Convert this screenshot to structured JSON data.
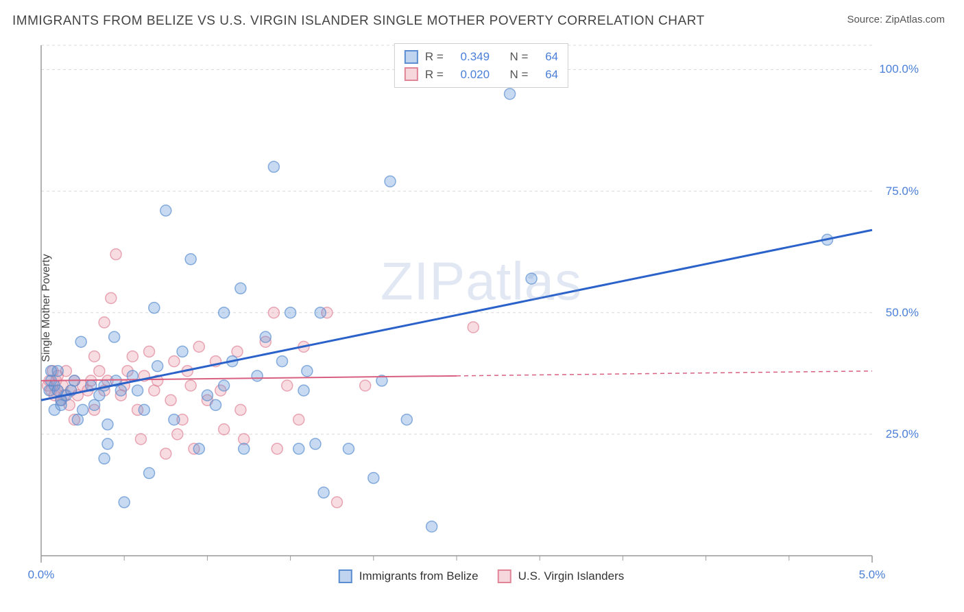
{
  "title": "IMMIGRANTS FROM BELIZE VS U.S. VIRGIN ISLANDER SINGLE MOTHER POVERTY CORRELATION CHART",
  "source": "Source: ZipAtlas.com",
  "watermark": "ZIPatlas",
  "ylabel": "Single Mother Poverty",
  "chart": {
    "type": "scatter",
    "background_color": "#ffffff",
    "grid_color": "#d8d8d8",
    "axis_color": "#999999",
    "xlim": [
      0.0,
      5.0
    ],
    "ylim": [
      0.0,
      105.0
    ],
    "x_ticks": [
      0.0,
      5.0
    ],
    "x_tick_labels": [
      "0.0%",
      "5.0%"
    ],
    "y_gridlines": [
      25.0,
      50.0,
      75.0,
      100.0
    ],
    "y_tick_labels": [
      "25.0%",
      "50.0%",
      "75.0%",
      "100.0%"
    ],
    "x_minor_ticks": [
      0.5,
      1.0,
      1.5,
      2.0,
      2.5,
      3.0,
      3.5,
      4.0,
      4.5
    ],
    "marker_radius": 8,
    "marker_fill_opacity": 0.35,
    "marker_stroke_width": 1.5,
    "series": [
      {
        "name": "Immigrants from Belize",
        "color": "#6194d8",
        "stroke": "#5a8ed0",
        "r_value": "0.349",
        "n_value": "64",
        "regression": {
          "x1": 0.0,
          "y1": 32.0,
          "x2": 5.0,
          "y2": 67.0,
          "width": 3
        },
        "points": [
          [
            0.06,
            36
          ],
          [
            0.05,
            34
          ],
          [
            0.08,
            35
          ],
          [
            0.1,
            34
          ],
          [
            0.12,
            32
          ],
          [
            0.06,
            38
          ],
          [
            0.08,
            30
          ],
          [
            0.1,
            38
          ],
          [
            0.12,
            31
          ],
          [
            0.15,
            33
          ],
          [
            0.18,
            34
          ],
          [
            0.2,
            36
          ],
          [
            0.22,
            28
          ],
          [
            0.25,
            30
          ],
          [
            0.24,
            44
          ],
          [
            0.3,
            35
          ],
          [
            0.32,
            31
          ],
          [
            0.35,
            33
          ],
          [
            0.38,
            35
          ],
          [
            0.4,
            27
          ],
          [
            0.45,
            36
          ],
          [
            0.44,
            45
          ],
          [
            0.48,
            34
          ],
          [
            0.38,
            20
          ],
          [
            0.4,
            23
          ],
          [
            0.55,
            37
          ],
          [
            0.58,
            34
          ],
          [
            0.62,
            30
          ],
          [
            0.5,
            11
          ],
          [
            0.65,
            17
          ],
          [
            0.7,
            39
          ],
          [
            0.85,
            42
          ],
          [
            0.8,
            28
          ],
          [
            0.9,
            61
          ],
          [
            0.68,
            51
          ],
          [
            0.75,
            71
          ],
          [
            1.0,
            33
          ],
          [
            0.95,
            22
          ],
          [
            1.1,
            35
          ],
          [
            1.15,
            40
          ],
          [
            1.1,
            50
          ],
          [
            1.05,
            31
          ],
          [
            1.2,
            55
          ],
          [
            1.3,
            37
          ],
          [
            1.35,
            45
          ],
          [
            1.22,
            22
          ],
          [
            1.4,
            80
          ],
          [
            1.45,
            40
          ],
          [
            1.5,
            50
          ],
          [
            1.6,
            38
          ],
          [
            1.55,
            22
          ],
          [
            1.68,
            50
          ],
          [
            1.7,
            13
          ],
          [
            1.65,
            23
          ],
          [
            1.58,
            34
          ],
          [
            1.85,
            22
          ],
          [
            2.0,
            16
          ],
          [
            2.05,
            36
          ],
          [
            2.1,
            77
          ],
          [
            2.2,
            28
          ],
          [
            2.35,
            6
          ],
          [
            2.82,
            95
          ],
          [
            2.95,
            57
          ],
          [
            4.73,
            65
          ]
        ]
      },
      {
        "name": "U.S. Virgin Islanders",
        "color": "#e89aa8",
        "stroke": "#e08598",
        "r_value": "0.020",
        "n_value": "64",
        "regression_solid": {
          "x1": 0.0,
          "y1": 36.0,
          "x2": 2.5,
          "y2": 37.0,
          "width": 2
        },
        "regression_dashed": {
          "x1": 2.5,
          "y1": 37.0,
          "x2": 5.0,
          "y2": 38.0,
          "width": 1.5
        },
        "points": [
          [
            0.04,
            35
          ],
          [
            0.06,
            34
          ],
          [
            0.05,
            36
          ],
          [
            0.08,
            33
          ],
          [
            0.07,
            38
          ],
          [
            0.1,
            34
          ],
          [
            0.09,
            36
          ],
          [
            0.12,
            32
          ],
          [
            0.1,
            37
          ],
          [
            0.14,
            33
          ],
          [
            0.13,
            35
          ],
          [
            0.15,
            38
          ],
          [
            0.18,
            34
          ],
          [
            0.17,
            31
          ],
          [
            0.2,
            36
          ],
          [
            0.22,
            33
          ],
          [
            0.25,
            35
          ],
          [
            0.2,
            28
          ],
          [
            0.28,
            34
          ],
          [
            0.3,
            36
          ],
          [
            0.32,
            30
          ],
          [
            0.35,
            38
          ],
          [
            0.32,
            41
          ],
          [
            0.38,
            34
          ],
          [
            0.4,
            36
          ],
          [
            0.38,
            48
          ],
          [
            0.42,
            53
          ],
          [
            0.48,
            33
          ],
          [
            0.45,
            62
          ],
          [
            0.5,
            35
          ],
          [
            0.52,
            38
          ],
          [
            0.58,
            30
          ],
          [
            0.55,
            41
          ],
          [
            0.6,
            24
          ],
          [
            0.62,
            37
          ],
          [
            0.68,
            34
          ],
          [
            0.65,
            42
          ],
          [
            0.7,
            36
          ],
          [
            0.75,
            21
          ],
          [
            0.78,
            32
          ],
          [
            0.8,
            40
          ],
          [
            0.82,
            25
          ],
          [
            0.88,
            38
          ],
          [
            0.85,
            28
          ],
          [
            0.9,
            35
          ],
          [
            0.95,
            43
          ],
          [
            0.92,
            22
          ],
          [
            1.0,
            32
          ],
          [
            1.05,
            40
          ],
          [
            1.1,
            26
          ],
          [
            1.08,
            34
          ],
          [
            1.18,
            42
          ],
          [
            1.2,
            30
          ],
          [
            1.22,
            24
          ],
          [
            1.35,
            44
          ],
          [
            1.4,
            50
          ],
          [
            1.42,
            22
          ],
          [
            1.48,
            35
          ],
          [
            1.58,
            43
          ],
          [
            1.55,
            28
          ],
          [
            1.72,
            50
          ],
          [
            1.78,
            11
          ],
          [
            1.95,
            35
          ],
          [
            2.6,
            47
          ]
        ]
      }
    ]
  },
  "legend_bottom": {
    "items": [
      {
        "label": "Immigrants from Belize",
        "color": "#6194d8",
        "stroke": "#5a8ed0"
      },
      {
        "label": "U.S. Virgin Islanders",
        "color": "#e89aa8",
        "stroke": "#e08598"
      }
    ]
  }
}
